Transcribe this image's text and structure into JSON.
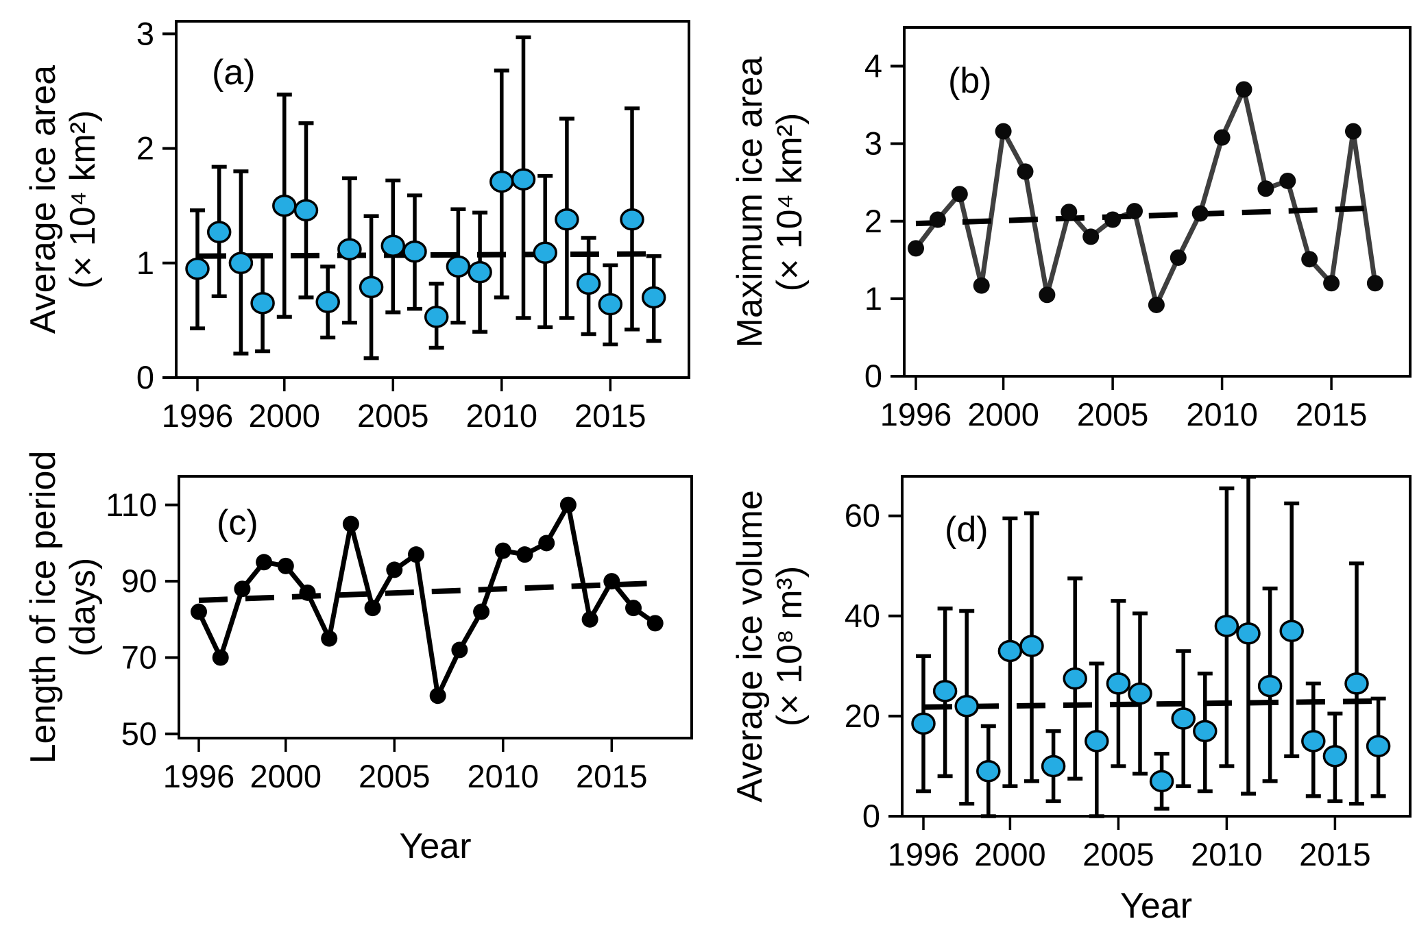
{
  "figure": {
    "xlabel": "Year",
    "x_tick_labels": [
      1996,
      2000,
      2005,
      2010,
      2015
    ],
    "colors": {
      "marker_blue": "#25ACE3",
      "line_dark": "#3F3F3F",
      "black": "#000000"
    }
  },
  "chart_data": [
    {
      "id": "a",
      "type": "scatter-errorbar",
      "panel_label": "(a)",
      "ylabel_line1": "Average ice area",
      "ylabel_line2": "(× 10⁴ km²)",
      "xlabel": null,
      "ylim": [
        0,
        3.11
      ],
      "yticks": [
        0,
        1,
        2,
        3
      ],
      "xticks": [
        1996,
        2000,
        2005,
        2010,
        2015
      ],
      "years": [
        1996,
        1997,
        1998,
        1999,
        2000,
        2001,
        2002,
        2003,
        2004,
        2005,
        2006,
        2007,
        2008,
        2009,
        2010,
        2011,
        2012,
        2013,
        2014,
        2015,
        2016,
        2017
      ],
      "values": [
        0.95,
        1.27,
        1.0,
        0.65,
        1.5,
        1.46,
        0.66,
        1.12,
        0.79,
        1.15,
        1.1,
        0.53,
        0.97,
        0.92,
        1.71,
        1.73,
        1.09,
        1.38,
        0.82,
        0.64,
        1.38,
        0.7
      ],
      "err_low": [
        0.43,
        0.71,
        0.21,
        0.23,
        0.53,
        0.7,
        0.35,
        0.48,
        0.17,
        0.57,
        0.6,
        0.26,
        0.48,
        0.4,
        0.7,
        0.52,
        0.44,
        0.52,
        0.38,
        0.29,
        0.42,
        0.32
      ],
      "err_high": [
        1.46,
        1.84,
        1.8,
        1.06,
        2.47,
        2.22,
        0.97,
        1.74,
        1.41,
        1.72,
        1.59,
        0.82,
        1.47,
        1.44,
        2.68,
        2.97,
        1.76,
        2.26,
        1.22,
        0.98,
        2.35,
        1.06
      ],
      "trend": {
        "start": 1.06,
        "end": 1.08
      },
      "marker_color": "#25ACE3"
    },
    {
      "id": "b",
      "type": "line",
      "panel_label": "(b)",
      "ylabel_line1": "Maximum ice area",
      "ylabel_line2": "(× 10⁴ km²)",
      "xlabel": null,
      "ylim": [
        0,
        4.5
      ],
      "yticks": [
        0,
        1,
        2,
        3,
        4
      ],
      "xticks": [
        1996,
        2000,
        2005,
        2010,
        2015
      ],
      "years": [
        1996,
        1997,
        1998,
        1999,
        2000,
        2001,
        2002,
        2003,
        2004,
        2005,
        2006,
        2007,
        2008,
        2009,
        2010,
        2011,
        2012,
        2013,
        2014,
        2015,
        2016,
        2017
      ],
      "values": [
        1.65,
        2.02,
        2.35,
        1.17,
        3.16,
        2.64,
        1.05,
        2.12,
        1.8,
        2.02,
        2.13,
        0.92,
        1.53,
        2.1,
        3.08,
        3.7,
        2.42,
        2.52,
        1.51,
        1.2,
        3.16,
        1.2
      ],
      "trend": {
        "start": 1.97,
        "end": 2.17
      },
      "line_color": "#3F3F3F",
      "marker_color": "#0A0A0A"
    },
    {
      "id": "c",
      "type": "line",
      "panel_label": "(c)",
      "ylabel_line1": "Length of ice period",
      "ylabel_line2": "(days)",
      "xlabel": "Year",
      "ylim": [
        48.9,
        117.5
      ],
      "yticks": [
        50,
        70,
        90,
        110
      ],
      "xticks": [
        1996,
        2000,
        2005,
        2010,
        2015
      ],
      "years": [
        1996,
        1997,
        1998,
        1999,
        2000,
        2001,
        2002,
        2003,
        2004,
        2005,
        2006,
        2007,
        2008,
        2009,
        2010,
        2011,
        2012,
        2013,
        2014,
        2015,
        2016,
        2017
      ],
      "values": [
        82,
        70,
        88,
        95,
        94,
        87,
        75,
        105,
        83,
        93,
        97,
        60,
        72,
        82,
        98,
        97,
        100,
        110,
        80,
        90,
        83,
        79
      ],
      "trend": {
        "start": 85.0,
        "end": 89.5
      },
      "line_color": "#000000",
      "marker_color": "#000000"
    },
    {
      "id": "d",
      "type": "scatter-errorbar",
      "panel_label": "(d)",
      "ylabel_line1": "Average ice volume",
      "ylabel_line2": "(× 10⁸ m³)",
      "xlabel": "Year",
      "ylim": [
        0,
        67.9
      ],
      "yticks": [
        0,
        20,
        40,
        60
      ],
      "xticks": [
        1996,
        2000,
        2005,
        2010,
        2015
      ],
      "years": [
        1996,
        1997,
        1998,
        1999,
        2000,
        2001,
        2002,
        2003,
        2004,
        2005,
        2006,
        2007,
        2008,
        2009,
        2010,
        2011,
        2012,
        2013,
        2014,
        2015,
        2016,
        2017
      ],
      "values": [
        18.5,
        25,
        22,
        9,
        33,
        34,
        10,
        27.5,
        15,
        26.5,
        24.5,
        7,
        19.5,
        17,
        38,
        36.5,
        26,
        37,
        15,
        12,
        26.5,
        14
      ],
      "err_low": [
        5,
        8,
        2.5,
        0,
        6,
        7,
        3,
        7.5,
        0,
        10,
        8.5,
        1.5,
        6,
        5,
        10,
        4.5,
        7,
        12,
        4,
        3,
        2.5,
        4
      ],
      "err_high": [
        32,
        41.5,
        41,
        18,
        59.5,
        60.5,
        17,
        47.5,
        30.5,
        43,
        40.5,
        12.5,
        33,
        28.5,
        65.5,
        67.8,
        45.5,
        62.5,
        26.5,
        20.5,
        50.5,
        23.5
      ],
      "trend": {
        "start": 21.8,
        "end": 23.0
      },
      "marker_color": "#25ACE3"
    }
  ]
}
